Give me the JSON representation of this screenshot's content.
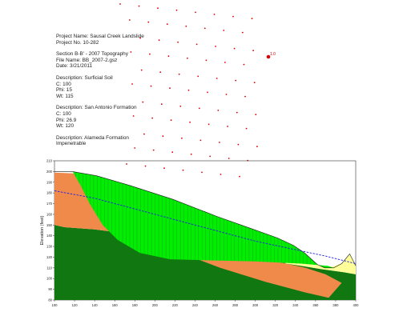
{
  "info": {
    "project_name": "Project Name: Sausal Creek Landslide",
    "project_no": "Project No. 10-282",
    "section": "Section B-B'  -  2007 Topography",
    "file_name": "File Name: BB_2007-2.gsz",
    "date": "Date: 3/21/2011",
    "soil1_desc": "Description: Surficial Soil",
    "soil1_c": "C: 100",
    "soil1_phi": "Phi: 15",
    "soil1_wt": "Wt: 115",
    "soil2_desc": "Description: San Antonio Formation",
    "soil2_c": "C: 100",
    "soil2_phi": "Phi: 26.9",
    "soil2_wt": "Wt: 120",
    "soil3_desc": "Description: Alameda Formation",
    "soil3_note": "Impenetrable"
  },
  "axis": {
    "ylabel": "Elevation (feet)",
    "x_ticks": [
      "100",
      "120",
      "140",
      "160",
      "180",
      "200",
      "220",
      "240",
      "260",
      "280",
      "300",
      "320",
      "340",
      "360",
      "380",
      "400"
    ],
    "y_ticks": [
      "80",
      "90",
      "100",
      "110",
      "120",
      "130",
      "140",
      "150",
      "160",
      "170",
      "180",
      "190",
      "200",
      "210"
    ],
    "xlim": [
      100,
      400
    ],
    "ylim": [
      80,
      210
    ]
  },
  "critical_label": "1.0",
  "colors": {
    "surficial_soil": "#00ee00",
    "surficial_soil_slices": "#2f8f2f",
    "san_antonio": "#f08a4b",
    "alameda": "#117711",
    "upper_fill": "#ffff99",
    "water_table": "#2222dd",
    "grid_points": "#dd0000"
  }
}
